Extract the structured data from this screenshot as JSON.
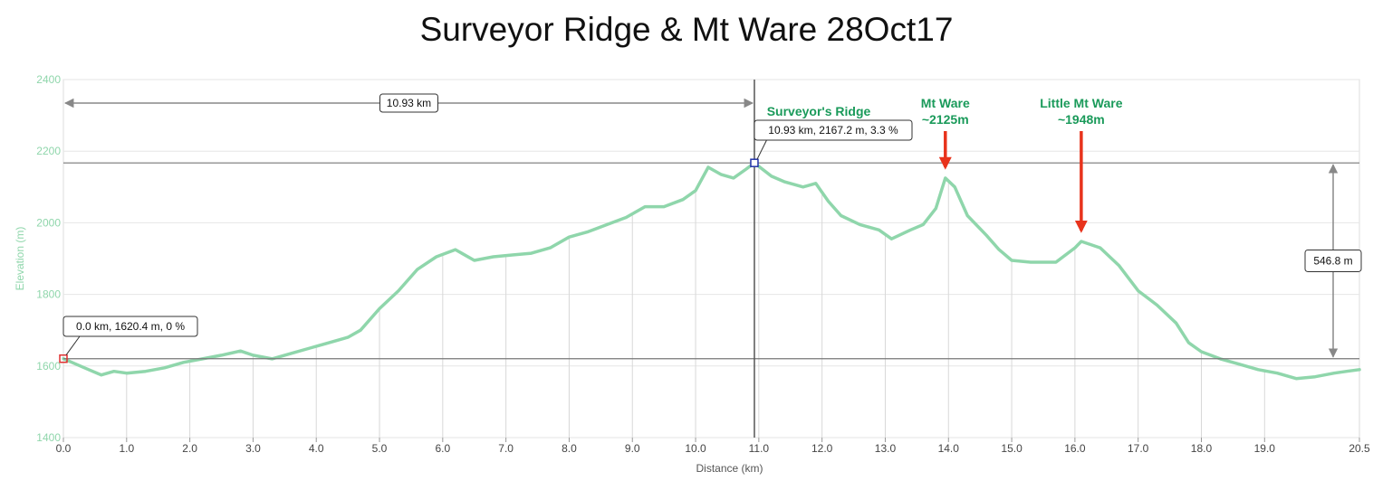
{
  "chart_data": {
    "type": "line",
    "title": "Surveyor Ridge & Mt Ware 28Oct17",
    "xlabel": "Distance (km)",
    "ylabel": "Elevation (m)",
    "xlim": [
      0,
      20.5
    ],
    "ylim": [
      1400,
      2400
    ],
    "xticks": [
      0,
      1,
      2,
      3,
      4,
      5,
      6,
      7,
      8,
      9,
      10,
      11,
      12,
      13,
      14,
      15,
      16,
      17,
      18,
      19,
      20.5
    ],
    "xtick_labels": [
      "0.0",
      "1.0",
      "2.0",
      "3.0",
      "4.0",
      "5.0",
      "6.0",
      "7.0",
      "8.0",
      "9.0",
      "10.0",
      "11.0",
      "12.0",
      "13.0",
      "14.0",
      "15.0",
      "16.0",
      "17.0",
      "18.0",
      "19.0",
      "20.5"
    ],
    "yticks": [
      1400,
      1600,
      1800,
      2000,
      2200,
      2400
    ],
    "grid": true,
    "line_color": "#8fd6ab",
    "series": [
      {
        "x": [
          0,
          0.2,
          0.4,
          0.6,
          0.8,
          1.0,
          1.3,
          1.6,
          1.9,
          2.2,
          2.5,
          2.8,
          3.0,
          3.3,
          3.6,
          3.9,
          4.2,
          4.5,
          4.7,
          5.0,
          5.3,
          5.6,
          5.9,
          6.2,
          6.5,
          6.8,
          7.1,
          7.4,
          7.7,
          8.0,
          8.3,
          8.6,
          8.9,
          9.2,
          9.5,
          9.8,
          10.0,
          10.2,
          10.4,
          10.6,
          10.8,
          10.93,
          11.2,
          11.4,
          11.7,
          11.9,
          12.1,
          12.3,
          12.6,
          12.9,
          13.1,
          13.4,
          13.6,
          13.8,
          13.95,
          14.1,
          14.3,
          14.6,
          14.8,
          15.0,
          15.3,
          15.7,
          16.0,
          16.1,
          16.4,
          16.7,
          17.0,
          17.3,
          17.6,
          17.8,
          18.0,
          18.3,
          18.6,
          18.9,
          19.2,
          19.5,
          19.8,
          20.1,
          20.3,
          20.5
        ],
        "y": [
          1620.4,
          1605,
          1590,
          1575,
          1585,
          1580,
          1585,
          1595,
          1610,
          1620,
          1630,
          1642,
          1630,
          1620,
          1635,
          1650,
          1665,
          1680,
          1700,
          1760,
          1810,
          1870,
          1905,
          1925,
          1895,
          1905,
          1910,
          1915,
          1930,
          1960,
          1975,
          1995,
          2015,
          2045,
          2045,
          2065,
          2090,
          2155,
          2135,
          2125,
          2150,
          2167.2,
          2130,
          2115,
          2100,
          2110,
          2060,
          2020,
          1995,
          1980,
          1955,
          1980,
          1995,
          2040,
          2125,
          2100,
          2020,
          1965,
          1925,
          1895,
          1890,
          1890,
          1930,
          1948,
          1930,
          1880,
          1810,
          1770,
          1720,
          1665,
          1640,
          1620,
          1605,
          1590,
          1580,
          1565,
          1570,
          1580,
          1585,
          1590
        ]
      }
    ],
    "annotations": [
      {
        "label": "Surveyor's Ridge",
        "x": 10.93
      },
      {
        "label": "Mt Ware",
        "sublabel": "~2125m",
        "x": 13.95,
        "y": 2125
      },
      {
        "label": "Little Mt Ware",
        "sublabel": "~1948m",
        "x": 16.1,
        "y": 1948
      }
    ],
    "markers": [
      {
        "x": 0.0,
        "y": 1620.4,
        "label": "0.0 km, 1620.4 m, 0 %"
      },
      {
        "x": 10.93,
        "y": 2167.2,
        "label": "10.93 km, 2167.2 m, 3.3 %"
      }
    ],
    "measurements": {
      "distance_label": "10.93 km",
      "elevation_gain_label": "546.8 m"
    },
    "colors": {
      "annotation_text": "#1a9a5a",
      "arrow": "#e8331c",
      "start_marker": "#e03030",
      "end_marker": "#2233aa"
    }
  }
}
